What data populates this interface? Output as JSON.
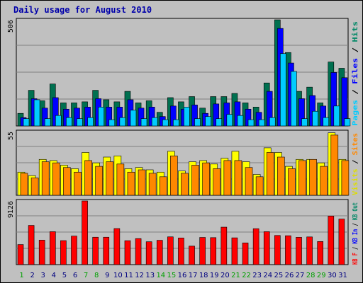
{
  "title": "Daily usage for August 2010",
  "chart_data": [
    {
      "type": "bar",
      "name": "pages-files-hits",
      "ymax_label": "506",
      "side_label": [
        {
          "text": "Pages",
          "color": "#00ccff"
        },
        {
          "text": " / ",
          "color": "#000000"
        },
        {
          "text": "Files",
          "color": "#0000ff"
        },
        {
          "text": " / ",
          "color": "#000000"
        },
        {
          "text": "Hits",
          "color": "#008866"
        }
      ],
      "ylim": [
        0,
        506
      ],
      "series": [
        {
          "name": "Hits",
          "color": "#007050",
          "values": [
            60,
            170,
            120,
            200,
            110,
            110,
            115,
            170,
            125,
            115,
            165,
            110,
            120,
            65,
            135,
            115,
            140,
            85,
            140,
            140,
            155,
            110,
            90,
            205,
            506,
            350,
            165,
            185,
            110,
            305,
            275
          ]
        },
        {
          "name": "Files",
          "color": "#0000ff",
          "values": [
            40,
            130,
            85,
            135,
            80,
            85,
            90,
            130,
            90,
            90,
            125,
            85,
            90,
            45,
            95,
            80,
            100,
            60,
            105,
            110,
            115,
            80,
            65,
            165,
            465,
            300,
            130,
            145,
            95,
            255,
            230
          ]
        },
        {
          "name": "Pages",
          "color": "#00ccff",
          "values": [
            35,
            125,
            35,
            50,
            40,
            35,
            40,
            90,
            30,
            40,
            75,
            35,
            40,
            30,
            30,
            90,
            35,
            45,
            35,
            55,
            50,
            30,
            30,
            40,
            345,
            260,
            35,
            70,
            40,
            95,
            35
          ]
        }
      ]
    },
    {
      "type": "bar",
      "name": "visits-sites",
      "ymax_label": "55",
      "side_label": [
        {
          "text": "Visits",
          "color": "#dddd00"
        },
        {
          "text": " / ",
          "color": "#000000"
        },
        {
          "text": "Sites",
          "color": "#ff8800"
        }
      ],
      "ylim": [
        0,
        55
      ],
      "series": [
        {
          "name": "Visits",
          "color": "#ffff00",
          "values": [
            20,
            17,
            31,
            30,
            26,
            23,
            37,
            28,
            33,
            34,
            23,
            24,
            22,
            20,
            38,
            21,
            29,
            30,
            27,
            32,
            38,
            29,
            18,
            41,
            37,
            25,
            31,
            31,
            28,
            54,
            31
          ]
        },
        {
          "name": "Sites",
          "color": "#ff8800",
          "values": [
            19,
            15,
            29,
            28,
            24,
            20,
            30,
            25,
            29,
            27,
            20,
            22,
            19,
            16,
            34,
            19,
            26,
            28,
            23,
            30,
            30,
            24,
            16,
            37,
            33,
            23,
            30,
            31,
            25,
            52,
            30
          ]
        }
      ]
    },
    {
      "type": "bar",
      "name": "kbytes",
      "ymax_label": "9126",
      "side_label": [
        {
          "text": "KB F",
          "color": "#ff0000"
        },
        {
          "text": " / ",
          "color": "#000000"
        },
        {
          "text": "KB In",
          "color": "#0000ff"
        },
        {
          "text": " / ",
          "color": "#000000"
        },
        {
          "text": "KB Out",
          "color": "#008866"
        }
      ],
      "ylim": [
        0,
        9126
      ],
      "series": [
        {
          "name": "KB F",
          "color": "#ff0000",
          "values": [
            2880,
            5620,
            3510,
            4720,
            3440,
            4090,
            9126,
            3930,
            3930,
            5170,
            3430,
            3730,
            3280,
            3490,
            3980,
            3820,
            2650,
            3900,
            3870,
            5370,
            3840,
            3110,
            5150,
            4720,
            4180,
            4140,
            3920,
            3970,
            3310,
            6960,
            6530
          ]
        }
      ]
    }
  ],
  "x_labels": [
    "1",
    "2",
    "3",
    "4",
    "5",
    "6",
    "7",
    "8",
    "9",
    "10",
    "11",
    "12",
    "13",
    "14",
    "15",
    "16",
    "17",
    "18",
    "19",
    "20",
    "21",
    "22",
    "23",
    "24",
    "25",
    "26",
    "27",
    "28",
    "29",
    "30",
    "31"
  ],
  "weekend_days": [
    1,
    7,
    8,
    14,
    15,
    21,
    22,
    28,
    29
  ],
  "colors": {
    "weekday_label": "#000080",
    "weekend_label": "#00a000",
    "panel_bg": "#c0c0c0",
    "grid": "#808080",
    "title": "#0000aa"
  }
}
